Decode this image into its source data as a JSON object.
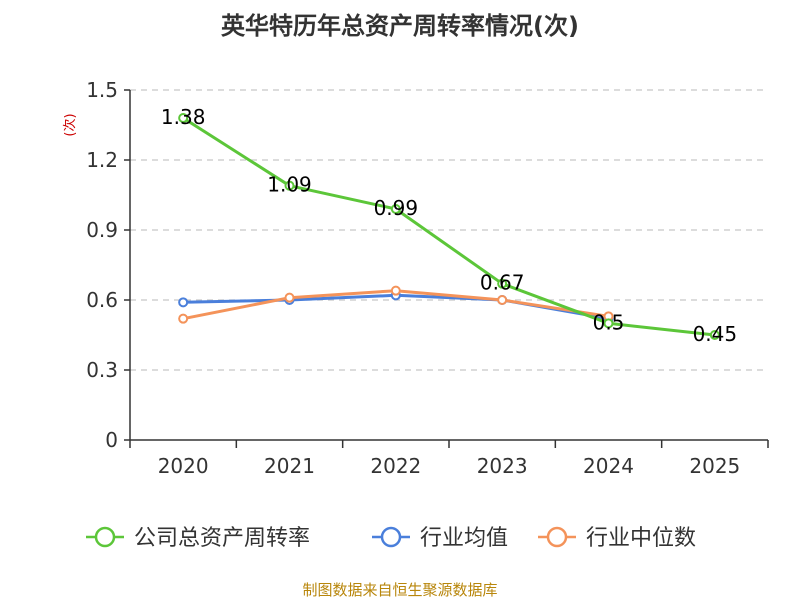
{
  "chart_data": {
    "type": "line",
    "title": "英华特历年总资产周转率情况(次)",
    "ylabel": "(次)",
    "xlabel": "",
    "categories": [
      "2020",
      "2021",
      "2022",
      "2023",
      "2024",
      "2025"
    ],
    "ylim": [
      0,
      1.5
    ],
    "yticks": [
      0,
      0.3,
      0.6,
      0.9,
      1.2,
      1.5
    ],
    "ytick_labels": [
      "0",
      "0.3",
      "0.6",
      "0.9",
      "1.2",
      "1.5"
    ],
    "grid": true,
    "legend_position": "bottom",
    "series": [
      {
        "name": "公司总资产周转率",
        "color": "#5cc639",
        "values": [
          1.38,
          1.09,
          0.99,
          0.67,
          0.5,
          0.45
        ],
        "data_labels": [
          "1.38",
          "1.09",
          "0.99",
          "0.67",
          "0.5",
          "0.45"
        ]
      },
      {
        "name": "行业均值",
        "color": "#4a7fdb",
        "values": [
          0.59,
          0.6,
          0.62,
          0.6,
          0.52,
          null
        ]
      },
      {
        "name": "行业中位数",
        "color": "#f4935a",
        "values": [
          0.52,
          0.61,
          0.64,
          0.6,
          0.53,
          null
        ]
      }
    ],
    "source": "制图数据来自恒生聚源数据库"
  }
}
